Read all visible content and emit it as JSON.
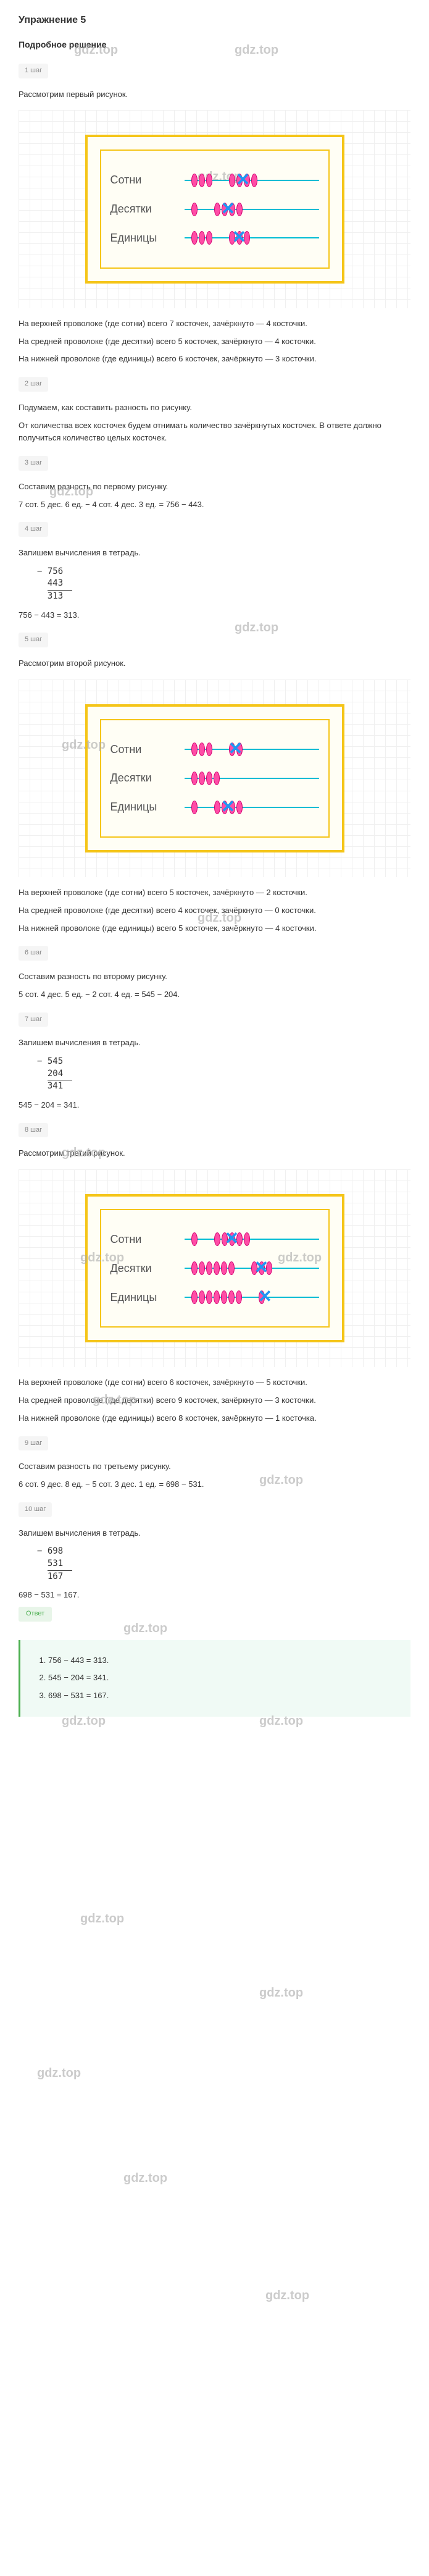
{
  "title": "Упражнение 5",
  "subtitle": "Подробное решение",
  "steps": {
    "s1": "1 шаг",
    "s2": "2 шаг",
    "s3": "3 шаг",
    "s4": "4 шаг",
    "s5": "5 шаг",
    "s6": "6 шаг",
    "s7": "7 шаг",
    "s8": "8 шаг",
    "s9": "9 шаг",
    "s10": "10 шаг"
  },
  "labels": {
    "hundreds": "Сотни",
    "tens": "Десятки",
    "units": "Единицы"
  },
  "texts": {
    "t1": "Рассмотрим первый рисунок.",
    "t2": "На верхней проволоке (где сотни) всего 7 косточек, зачёркнуто — 4 косточки.",
    "t3": "На средней проволоке (где десятки) всего 5 косточек, зачёркнуто — 4 косточки.",
    "t4": "На нижней проволоке (где единицы) всего 6 косточек, зачёркнуто — 3 косточки.",
    "t5": "Подумаем, как составить разность по рисунку.",
    "t6": "От количества всех косточек будем отнимать количество зачёркнутых косточек. В ответе должно получиться количество целых косточек.",
    "t7": "Составим разность по первому рисунку.",
    "t8": "7 сот. 5 дес. 6 ед. − 4 сот. 4 дес. 3 ед. = 756 − 443.",
    "t9": "Запишем вычисления в тетрадь.",
    "t10": "756 − 443 = 313.",
    "t11": "Рассмотрим второй рисунок.",
    "t12": "На верхней проволоке (где сотни) всего 5 косточек, зачёркнуто — 2 косточки.",
    "t13": "На средней проволоке (где десятки) всего 4 косточек, зачёркнуто — 0 косточки.",
    "t14": "На нижней проволоке (где единицы) всего 5 косточек, зачёркнуто — 4 косточки.",
    "t15": "Составим разность по второму рисунку.",
    "t16": "5 сот. 4 дес. 5 ед. − 2 сот. 4 ед. = 545 − 204.",
    "t17": "Запишем вычисления в тетрадь.",
    "t18": "545 − 204 = 341.",
    "t19": "Рассмотрим третий рисунок.",
    "t20": "На верхней проволоке (где сотни) всего 6 косточек, зачёркнуто — 5 косточки.",
    "t21": "На средней проволоке (где десятки) всего 9 косточек, зачёркнуто — 3 косточки.",
    "t22": "На нижней проволоке (где единицы) всего 8 косточек, зачёркнуто — 1 косточка.",
    "t23": "Составим разность по третьему рисунку.",
    "t24": "6 сот. 9 дес. 8 ед. − 5 сот. 3 дес. 1 ед. = 698 − 531.",
    "t25": "Запишем вычисления в тетрадь.",
    "t26": "698 − 531 = 167."
  },
  "calcs": {
    "c1": {
      "minus": "−",
      "a": "756",
      "b": "443",
      "r": "313"
    },
    "c2": {
      "minus": "−",
      "a": "545",
      "b": "204",
      "r": "341"
    },
    "c3": {
      "minus": "−",
      "a": "698",
      "b": "531",
      "r": "167"
    }
  },
  "abacus": {
    "fig1": {
      "rows": [
        {
          "total": 7,
          "crossed": 4,
          "group1": 3,
          "group2": 4
        },
        {
          "total": 5,
          "crossed": 4,
          "group1": 1,
          "group2": 4
        },
        {
          "total": 6,
          "crossed": 3,
          "group1": 3,
          "group2": 3
        }
      ]
    },
    "fig2": {
      "rows": [
        {
          "total": 5,
          "crossed": 2,
          "group1": 3,
          "group2": 2
        },
        {
          "total": 4,
          "crossed": 0,
          "group1": 4,
          "group2": 0
        },
        {
          "total": 5,
          "crossed": 4,
          "group1": 1,
          "group2": 4
        }
      ]
    },
    "fig3": {
      "rows": [
        {
          "total": 6,
          "crossed": 5,
          "group1": 1,
          "group2": 5
        },
        {
          "total": 9,
          "crossed": 3,
          "group1": 6,
          "group2": 3
        },
        {
          "total": 8,
          "crossed": 1,
          "group1": 7,
          "group2": 1
        }
      ]
    }
  },
  "answer": {
    "label": "Ответ",
    "items": [
      "756 − 443 = 313.",
      "545 − 204 = 341.",
      "698 − 531 = 167."
    ]
  },
  "watermark": "gdz.top",
  "colors": {
    "bead": "#ff4da6",
    "wire": "#00bcd4",
    "frame": "#f5c518",
    "cross": "#2196f3",
    "answer_bg": "#f0faf5",
    "answer_border": "#4caf50"
  }
}
